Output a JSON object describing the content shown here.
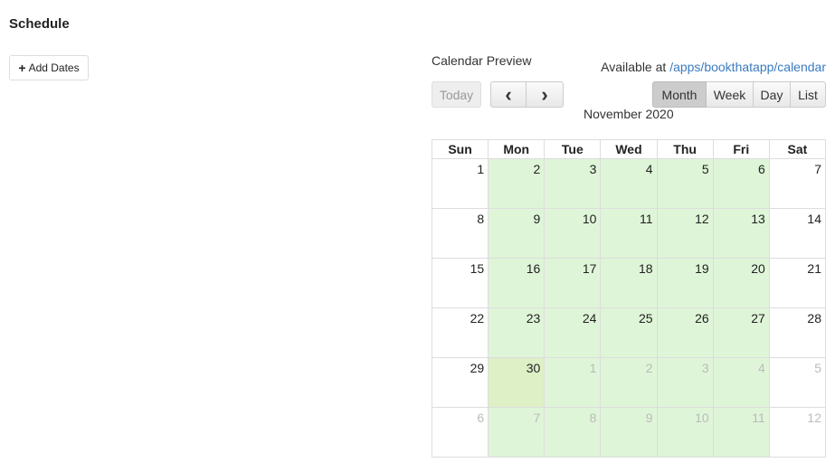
{
  "page": {
    "title": "Schedule",
    "add_dates_label": "Add Dates",
    "add_icon": "plus-icon"
  },
  "preview": {
    "label": "Calendar Preview",
    "available_prefix": "Available at",
    "available_link": "/apps/bookthatapp/calendar"
  },
  "toolbar": {
    "today": "Today",
    "prev": "‹",
    "next": "›",
    "views": [
      "Month",
      "Week",
      "Day",
      "List"
    ],
    "active_view": "Month"
  },
  "calendar": {
    "title": "November 2020",
    "weekdays": [
      "Sun",
      "Mon",
      "Tue",
      "Wed",
      "Thu",
      "Fri",
      "Sat"
    ],
    "available_weekdays": [
      1,
      2,
      3,
      4,
      5
    ],
    "weeks": [
      [
        {
          "d": 1
        },
        {
          "d": 2
        },
        {
          "d": 3
        },
        {
          "d": 4
        },
        {
          "d": 5
        },
        {
          "d": 6
        },
        {
          "d": 7
        }
      ],
      [
        {
          "d": 8
        },
        {
          "d": 9
        },
        {
          "d": 10
        },
        {
          "d": 11
        },
        {
          "d": 12
        },
        {
          "d": 13
        },
        {
          "d": 14
        }
      ],
      [
        {
          "d": 15
        },
        {
          "d": 16
        },
        {
          "d": 17
        },
        {
          "d": 18
        },
        {
          "d": 19
        },
        {
          "d": 20
        },
        {
          "d": 21
        }
      ],
      [
        {
          "d": 22
        },
        {
          "d": 23
        },
        {
          "d": 24
        },
        {
          "d": 25
        },
        {
          "d": 26
        },
        {
          "d": 27
        },
        {
          "d": 28
        }
      ],
      [
        {
          "d": 29
        },
        {
          "d": 30,
          "today": true
        },
        {
          "d": 1,
          "other": true
        },
        {
          "d": 2,
          "other": true
        },
        {
          "d": 3,
          "other": true
        },
        {
          "d": 4,
          "other": true
        },
        {
          "d": 5,
          "other": true
        }
      ],
      [
        {
          "d": 6,
          "other": true
        },
        {
          "d": 7,
          "other": true
        },
        {
          "d": 8,
          "other": true
        },
        {
          "d": 9,
          "other": true
        },
        {
          "d": 10,
          "other": true
        },
        {
          "d": 11,
          "other": true
        },
        {
          "d": 12,
          "other": true
        }
      ]
    ]
  },
  "colors": {
    "available": "#dff5d8",
    "today": "#ddf0c6",
    "link": "#3a7bbf"
  }
}
